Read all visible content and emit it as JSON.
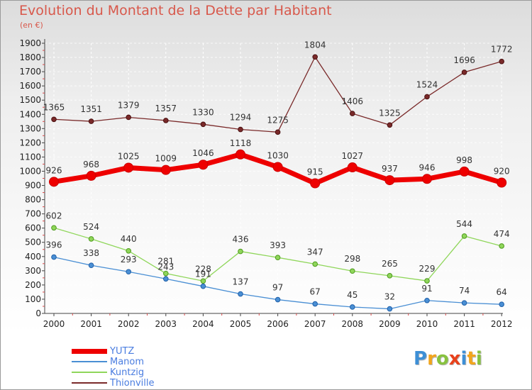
{
  "header": {
    "title": "Evolution du Montant de la Dette par Habitant",
    "subtitle": "(en €)"
  },
  "logo": {
    "text": "Proxiti",
    "letters": [
      {
        "ch": "P",
        "color": "#3d8fd6"
      },
      {
        "ch": "r",
        "color": "#f2a51c"
      },
      {
        "ch": "o",
        "color": "#88c23f"
      },
      {
        "ch": "x",
        "color": "#e8411b"
      },
      {
        "ch": "i",
        "color": "#3d8fd6"
      },
      {
        "ch": "t",
        "color": "#f2a51c"
      },
      {
        "ch": "i",
        "color": "#88c23f"
      }
    ]
  },
  "chart_data": {
    "type": "line",
    "title": "Evolution du Montant de la Dette par Habitant",
    "subtitle": "(en €)",
    "x": [
      "2000",
      "2001",
      "2002",
      "2003",
      "2004",
      "2005",
      "2006",
      "2007",
      "2008",
      "2009",
      "2010",
      "2011",
      "2012"
    ],
    "ylim": [
      0,
      1900
    ],
    "yticks": [
      0,
      100,
      200,
      300,
      400,
      500,
      600,
      700,
      800,
      900,
      1000,
      1100,
      1200,
      1300,
      1400,
      1500,
      1600,
      1700,
      1800,
      1900
    ],
    "grid": true,
    "legend_position": "bottom-left",
    "series": [
      {
        "name": "YUTZ",
        "color": "#ee0000",
        "values": [
          926,
          968,
          1025,
          1009,
          1046,
          1118,
          1030,
          915,
          1027,
          937,
          946,
          998,
          920
        ]
      },
      {
        "name": "Manom",
        "color": "#4a8fd4",
        "values": [
          396,
          338,
          293,
          243,
          191,
          137,
          97,
          67,
          45,
          32,
          91,
          74,
          64
        ]
      },
      {
        "name": "Kuntzig",
        "color": "#8fd65a",
        "values": [
          602,
          524,
          440,
          281,
          228,
          436,
          393,
          347,
          298,
          265,
          229,
          544,
          474
        ]
      },
      {
        "name": "Thionville",
        "color": "#7a2a2a",
        "values": [
          1365,
          1351,
          1379,
          1357,
          1330,
          1294,
          1275,
          1804,
          1406,
          1325,
          1524,
          1696,
          1772
        ]
      }
    ]
  }
}
